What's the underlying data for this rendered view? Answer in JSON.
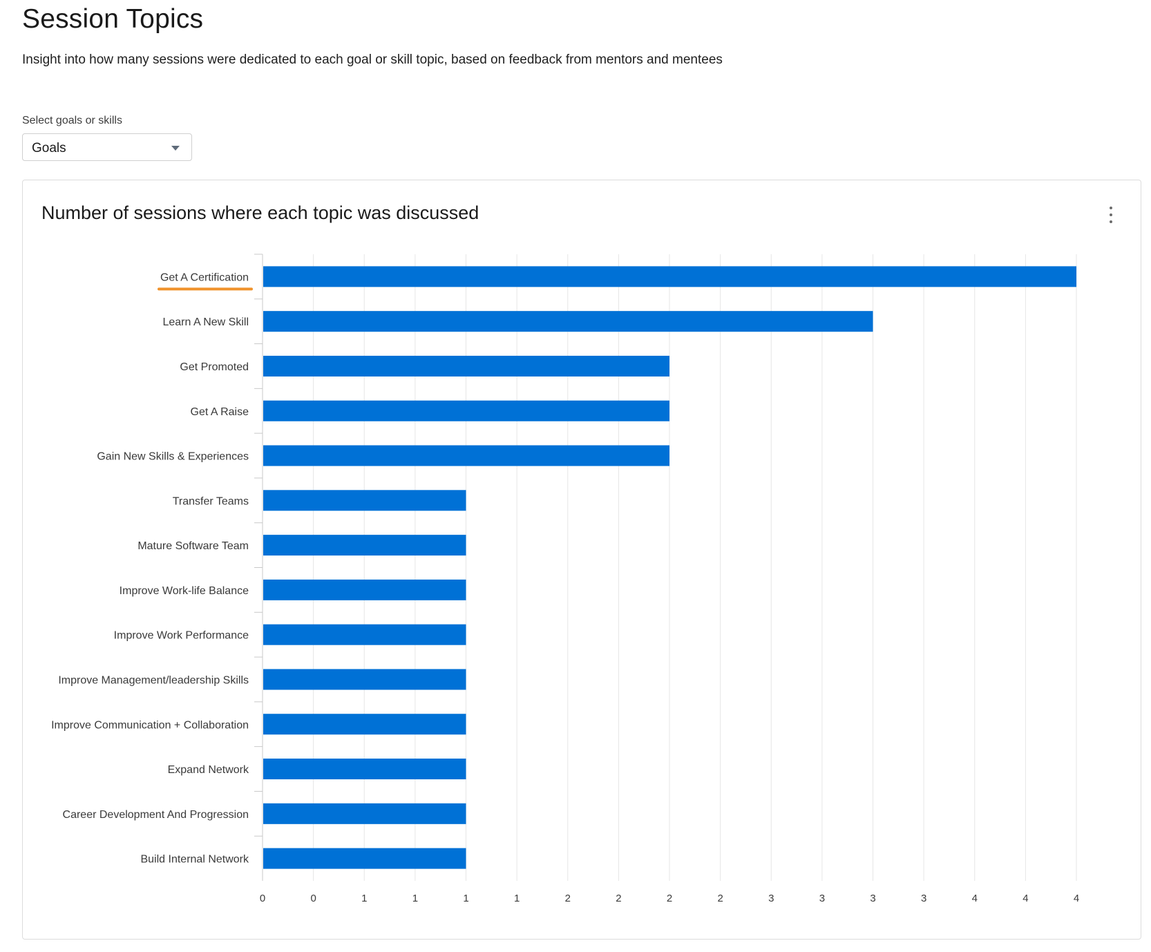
{
  "page": {
    "title": "Session Topics",
    "description": "Insight into how many sessions were dedicated to each goal or skill topic, based on feedback from mentors and mentees"
  },
  "filter": {
    "label": "Select goals or skills",
    "selected": "Goals",
    "caret_icon": "chevron-down-icon"
  },
  "card": {
    "title": "Number of sessions where each topic was discussed",
    "menu_icon": "kebab-menu-icon"
  },
  "colors": {
    "bar": "#0071d6",
    "highlight_underline": "#f0922b",
    "grid": "#e6e6e6"
  },
  "chart_data": {
    "type": "bar",
    "orientation": "horizontal",
    "categories": [
      "Get A Certification",
      "Learn A New Skill",
      "Get Promoted",
      "Get A Raise",
      "Gain New Skills & Experiences",
      "Transfer Teams",
      "Mature Software Team",
      "Improve Work-life Balance",
      "Improve Work Performance",
      "Improve Management/leadership Skills",
      "Improve Communication + Collaboration",
      "Expand Network",
      "Career Development And Progression",
      "Build Internal Network"
    ],
    "values": [
      4,
      3,
      2,
      2,
      2,
      1,
      1,
      1,
      1,
      1,
      1,
      1,
      1,
      1
    ],
    "xlim": [
      0,
      4
    ],
    "x_tick_labels": [
      "0",
      "0",
      "1",
      "1",
      "1",
      "1",
      "2",
      "2",
      "2",
      "2",
      "3",
      "3",
      "3",
      "3",
      "4",
      "4",
      "4"
    ],
    "grid": true,
    "highlighted_category": "Get A Certification"
  }
}
